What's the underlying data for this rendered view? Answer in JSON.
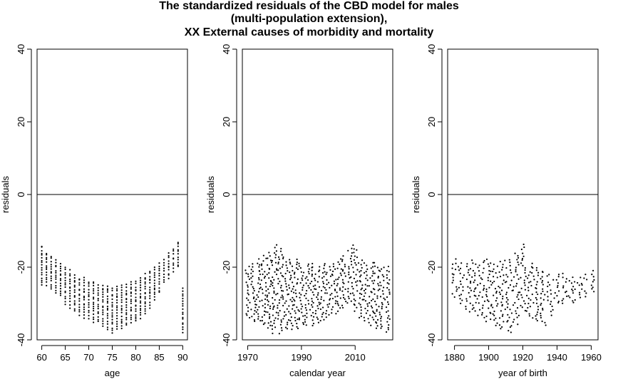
{
  "title_lines": [
    "The standardized residuals of the CBD model for males",
    "(multi-population extension),",
    "XX External causes of morbidity and mortality"
  ],
  "chart_data": [
    {
      "type": "scatter",
      "xlabel": "age",
      "ylabel": "residuals",
      "xlim": [
        59,
        91
      ],
      "ylim": [
        -40,
        40
      ],
      "xticks": [
        60,
        65,
        70,
        75,
        80,
        85,
        90
      ],
      "yticks": [
        -40,
        -20,
        0,
        20,
        40
      ],
      "reference_line_y": 0,
      "x": [
        60,
        61,
        62,
        63,
        64,
        65,
        66,
        67,
        68,
        69,
        70,
        71,
        72,
        73,
        74,
        75,
        76,
        77,
        78,
        79,
        80,
        81,
        82,
        83,
        84,
        85,
        86,
        87,
        88,
        89,
        90
      ],
      "y_top": [
        -14,
        -16,
        -17,
        -18,
        -19,
        -20,
        -21,
        -22,
        -23,
        -23,
        -24,
        -24,
        -25,
        -25,
        -25,
        -26,
        -25,
        -25,
        -25,
        -24,
        -24,
        -23,
        -22,
        -21,
        -20,
        -19,
        -18,
        -16,
        -15,
        -13,
        -26
      ],
      "y_bottom": [
        -25,
        -25,
        -26,
        -27,
        -28,
        -30,
        -31,
        -32,
        -33,
        -34,
        -34,
        -35,
        -35,
        -36,
        -37,
        -38,
        -37,
        -37,
        -36,
        -35,
        -35,
        -34,
        -33,
        -31,
        -29,
        -27,
        -24,
        -23,
        -21,
        -20,
        -38
      ],
      "point_color": "#000000"
    },
    {
      "type": "scatter",
      "xlabel": "calendar year",
      "ylabel": "residuals",
      "xlim": [
        1968,
        2024
      ],
      "ylim": [
        -40,
        40
      ],
      "xticks": [
        1970,
        1990,
        2010
      ],
      "yticks": [
        -40,
        -20,
        0,
        20,
        40
      ],
      "reference_line_y": 0,
      "x": [
        1970,
        1972,
        1974,
        1976,
        1978,
        1980,
        1982,
        1984,
        1986,
        1988,
        1990,
        1992,
        1994,
        1996,
        1998,
        2000,
        2002,
        2004,
        2006,
        2008,
        2010,
        2012,
        2014,
        2016,
        2018,
        2020,
        2022
      ],
      "y_top": [
        -20,
        -19,
        -18,
        -17,
        -16,
        -14,
        -15,
        -17,
        -18,
        -18,
        -19,
        -19,
        -19,
        -20,
        -19,
        -20,
        -19,
        -18,
        -17,
        -15,
        -14,
        -18,
        -19,
        -19,
        -19,
        -20,
        -20
      ],
      "y_bottom": [
        -34,
        -35,
        -35,
        -36,
        -37,
        -38,
        -38,
        -37,
        -37,
        -37,
        -36,
        -36,
        -36,
        -35,
        -35,
        -34,
        -33,
        -32,
        -31,
        -30,
        -32,
        -34,
        -35,
        -36,
        -37,
        -37,
        -38
      ],
      "point_color": "#000000"
    },
    {
      "type": "scatter",
      "xlabel": "year of birth",
      "ylabel": "residuals",
      "xlim": [
        1876,
        1964
      ],
      "ylim": [
        -40,
        40
      ],
      "xticks": [
        1880,
        1900,
        1920,
        1940,
        1960
      ],
      "yticks": [
        -40,
        -20,
        0,
        20,
        40
      ],
      "reference_line_y": 0,
      "x": [
        1880,
        1884,
        1888,
        1892,
        1896,
        1900,
        1904,
        1908,
        1912,
        1916,
        1920,
        1924,
        1928,
        1932,
        1936,
        1940,
        1944,
        1948,
        1952,
        1956,
        1960
      ],
      "y_top": [
        -18,
        -19,
        -19,
        -18,
        -18,
        -18,
        -19,
        -18,
        -18,
        -16,
        -14,
        -19,
        -20,
        -21,
        -22,
        -22,
        -22,
        -23,
        -23,
        -22,
        -21
      ],
      "y_bottom": [
        -28,
        -30,
        -32,
        -33,
        -34,
        -35,
        -36,
        -37,
        -38,
        -36,
        -32,
        -34,
        -35,
        -36,
        -33,
        -30,
        -30,
        -30,
        -29,
        -28,
        -27
      ],
      "point_color": "#000000"
    }
  ]
}
